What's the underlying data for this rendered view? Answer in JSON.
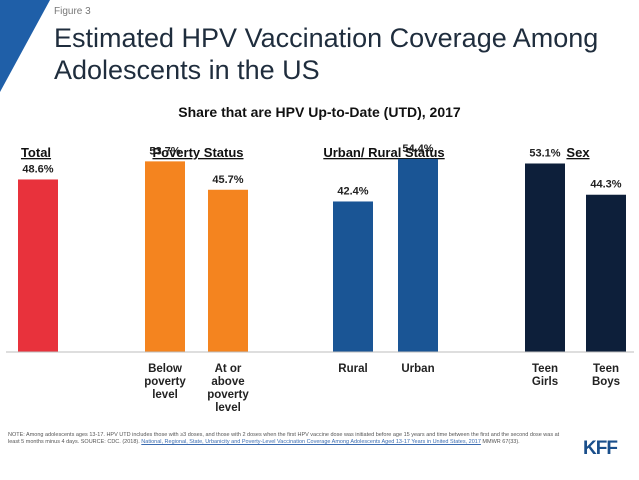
{
  "figure_label": "Figure 3",
  "title": "Estimated HPV Vaccination Coverage Among Adolescents in the US",
  "subtitle": "Share that are HPV Up-to-Date (UTD), 2017",
  "colors": {
    "corner": "#1f5fa8",
    "total": "#e8323c",
    "poverty": "#f4841f",
    "urban_rural": "#1a5595",
    "sex": "#0d1f3a"
  },
  "chart_data": {
    "type": "bar",
    "title": "Share that are HPV Up-to-Date (UTD), 2017",
    "ylim": [
      0,
      60
    ],
    "groups": [
      {
        "name": "Total",
        "color_key": "total",
        "bars": [
          {
            "category": "",
            "value": 48.6,
            "label": "48.6%"
          }
        ]
      },
      {
        "name": "Poverty Status",
        "color_key": "poverty",
        "bars": [
          {
            "category": "Below poverty level",
            "value": 53.7,
            "label": "53.7%"
          },
          {
            "category": "At or above poverty level",
            "value": 45.7,
            "label": "45.7%"
          }
        ]
      },
      {
        "name": "Urban/ Rural Status",
        "color_key": "urban_rural",
        "bars": [
          {
            "category": "Rural",
            "value": 42.4,
            "label": "42.4%"
          },
          {
            "category": "Urban",
            "value": 54.4,
            "label": "54.4%"
          }
        ]
      },
      {
        "name": "Sex",
        "color_key": "sex",
        "bars": [
          {
            "category": "Teen Girls",
            "value": 53.1,
            "label": "53.1%"
          },
          {
            "category": "Teen Boys",
            "value": 44.3,
            "label": "44.3%"
          }
        ]
      }
    ]
  },
  "note": {
    "text": "NOTE: Among adolescents ages 13-17. HPV UTD includes those with ≥3 doses, and those with 2 doses when the first HPV vaccine dose was initiated before age 15 years and time between the first and the second dose was at least 5 months minus 4 days.",
    "source_prefix": "SOURCE: CDC. (2018).",
    "source_link": "National, Regional, State, Urbanicity and Poverty-Level Vaccination Coverage Among Adolescents Aged 13-17 Years in United States, 2017",
    "source_suffix": "MMWR 67(33)."
  },
  "logo": "KFF"
}
